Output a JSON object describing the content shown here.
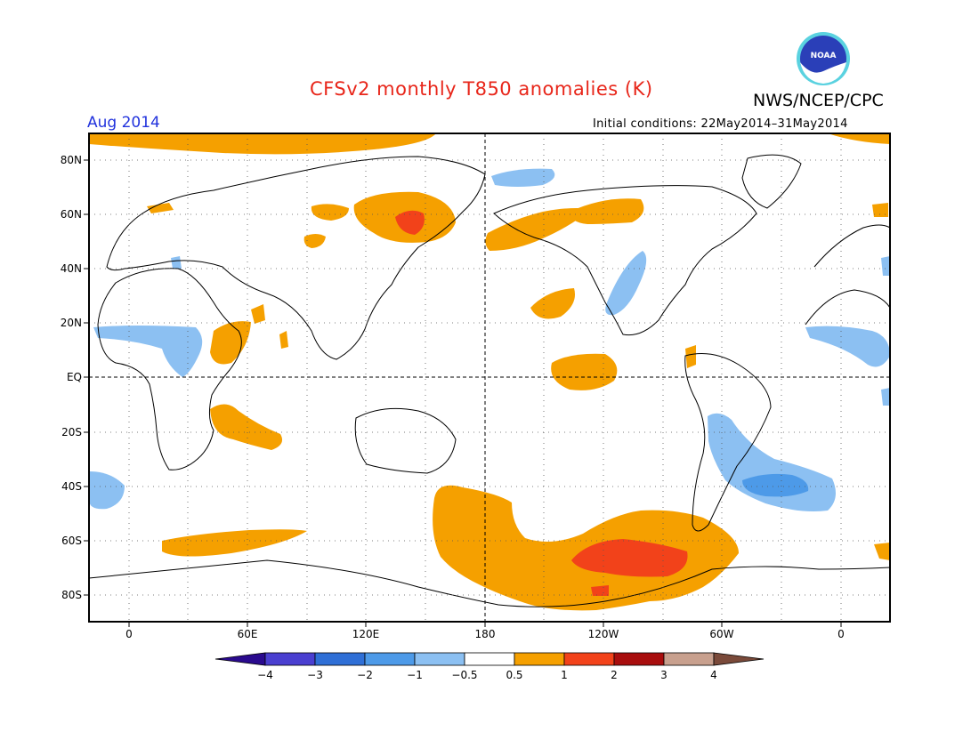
{
  "title": "CFSv2 monthly T850 anomalies (K)",
  "agency": "NWS/NCEP/CPC",
  "logo_text": "NOAA",
  "valid_month": "Aug 2014",
  "initial_conditions": "Initial conditions: 22May2014–31May2014",
  "latitude_labels": [
    "80N",
    "60N",
    "40N",
    "20N",
    "EQ",
    "20S",
    "40S",
    "60S",
    "80S"
  ],
  "longitude_labels": [
    "0",
    "60E",
    "120E",
    "180",
    "120W",
    "60W",
    "0"
  ],
  "colorbar": {
    "tick_labels": [
      "−4",
      "−3",
      "−2",
      "−1",
      "−0.5",
      "0.5",
      "1",
      "2",
      "3",
      "4"
    ],
    "colors": [
      "#2a0a8e",
      "#4a3fd0",
      "#2f6fd6",
      "#4d9ae8",
      "#8cc0f2",
      "#ffffff",
      "#f5a000",
      "#f2421a",
      "#a80d0d",
      "#c8a08e",
      "#7a4a3a"
    ]
  },
  "anomaly_colors": {
    "warm_light": "#f5a000",
    "warm_mid": "#f2421a",
    "cool_light": "#8cc0f2",
    "cool_mid": "#4d9ae8"
  }
}
